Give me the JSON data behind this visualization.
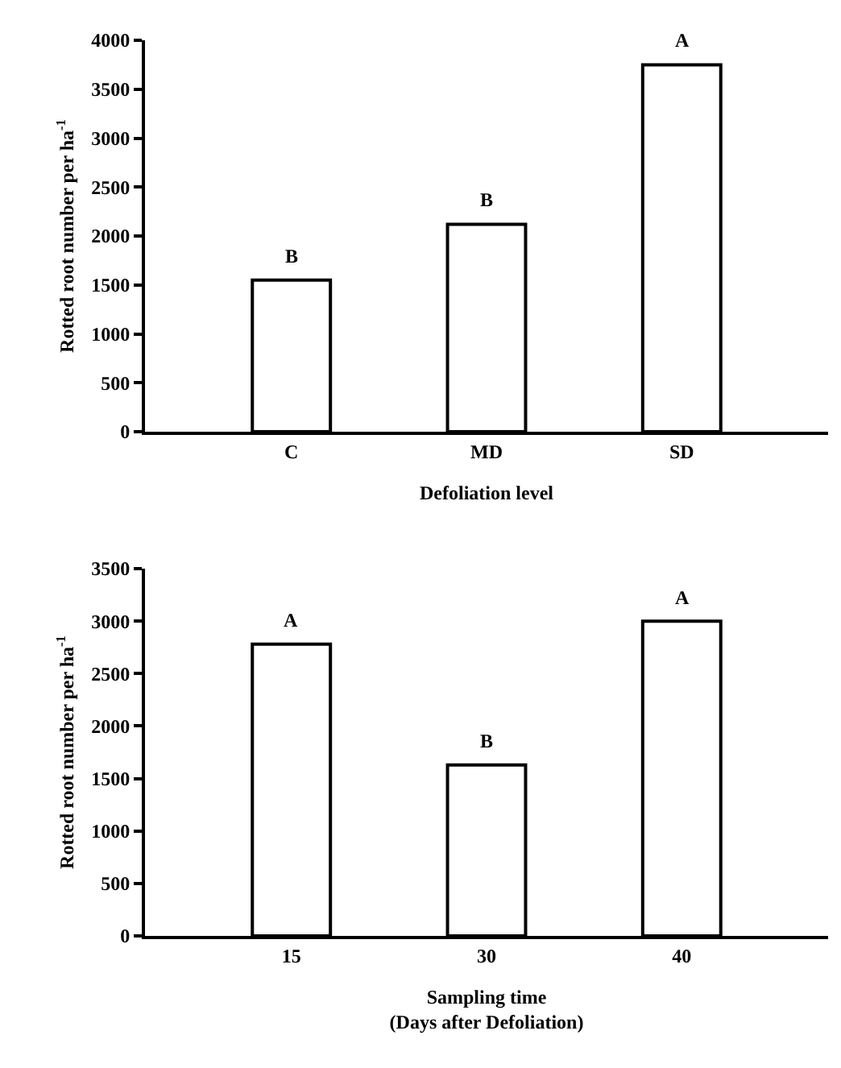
{
  "chart_data": [
    {
      "type": "bar",
      "xlabel": "Defoliation level",
      "ylabel": "Rotted root number per ha$^{-1}$",
      "categories": [
        "C",
        "MD",
        "SD"
      ],
      "series": [
        {
          "color": "#ffffff",
          "values": [
            1550,
            2120,
            3750
          ]
        }
      ],
      "ylim": [
        0,
        4000
      ],
      "yticks": [
        0,
        500,
        1000,
        1500,
        2000,
        2500,
        3000,
        3500,
        4000
      ],
      "grid": false,
      "annotations": [
        {
          "text": "B",
          "x": "C",
          "y": 1550
        },
        {
          "text": "B",
          "x": "MD",
          "y": 2120
        },
        {
          "text": "A",
          "x": "SD",
          "y": 3750
        }
      ]
    },
    {
      "type": "bar",
      "xlabel": "Sampling time\n(Days after Defoliation)",
      "ylabel": "Rotted root number per ha$^{-1}$",
      "categories": [
        "15",
        "30",
        "40"
      ],
      "series": [
        {
          "color": "#ffffff",
          "values": [
            2780,
            1630,
            3000
          ]
        }
      ],
      "ylim": [
        0,
        3500
      ],
      "yticks": [
        0,
        500,
        1000,
        1500,
        2000,
        2500,
        3000,
        3500
      ],
      "grid": false,
      "annotations": [
        {
          "text": "A",
          "x": "15",
          "y": 2780
        },
        {
          "text": "B",
          "x": "30",
          "y": 1630
        },
        {
          "text": "A",
          "x": "40",
          "y": 3000
        }
      ]
    }
  ]
}
